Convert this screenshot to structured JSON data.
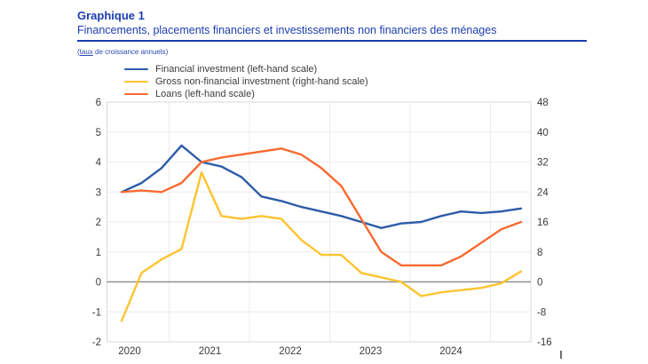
{
  "header": {
    "kicker": "Graphique 1",
    "title": "Financements, placements financiers et investissements non financiers des ménages",
    "note_open": "(",
    "note_link": "taux",
    "note_rest": " de croissance annuels)"
  },
  "colors": {
    "title_blue": "#1b3eae",
    "financial_investment": "#2d5ca8",
    "gross_non_financial_investment": "#fdc42f",
    "loans": "#f86a31",
    "zero_line": "#909090",
    "gridline": "#ececec",
    "axis_text": "#3a3a3a"
  },
  "legend": [
    {
      "label": "Financial investment (left-hand scale)",
      "color": "#2d5ca8"
    },
    {
      "label": "Gross non-financial investment (right-hand scale)",
      "color": "#fdc42f"
    },
    {
      "label": "Loans (left-hand scale)",
      "color": "#f86a31"
    }
  ],
  "chart_data": {
    "type": "line",
    "title": "Financements, placements financiers et investissements non financiers des ménages",
    "subtitle_note": "(taux de croissance annuels)",
    "x": [
      "2019-Q4",
      "2020-Q1",
      "2020-Q2",
      "2020-Q3",
      "2020-Q4",
      "2021-Q1",
      "2021-Q2",
      "2021-Q3",
      "2021-Q4",
      "2022-Q1",
      "2022-Q2",
      "2022-Q3",
      "2022-Q4",
      "2023-Q1",
      "2023-Q2",
      "2023-Q3",
      "2023-Q4",
      "2024-Q1",
      "2024-Q2",
      "2024-Q3",
      "2024-Q4"
    ],
    "x_tick_labels": [
      "2020",
      "2021",
      "2022",
      "2023",
      "2024"
    ],
    "left_axis": {
      "ticks": [
        6,
        5,
        4,
        3,
        2,
        1,
        0,
        -1,
        -2
      ],
      "range": [
        -2,
        6
      ]
    },
    "right_axis": {
      "ticks": [
        48,
        40,
        32,
        24,
        16,
        8,
        0,
        -8,
        -16
      ],
      "range": [
        -16,
        48
      ]
    },
    "grid": true,
    "legend_position": "top-left",
    "series": [
      {
        "name": "Financial investment (left-hand scale)",
        "scale": "left",
        "color": "#2d5ca8",
        "values": [
          3.0,
          3.3,
          3.8,
          4.55,
          4.0,
          3.85,
          3.5,
          2.85,
          2.7,
          2.5,
          2.35,
          2.2,
          2.0,
          1.8,
          1.95,
          2.0,
          2.2,
          2.35,
          2.3,
          2.35,
          2.45
        ]
      },
      {
        "name": "Gross non-financial investment (right-hand scale)",
        "scale": "right",
        "color": "#fdc42f",
        "values": [
          -10.4,
          2.4,
          6.0,
          8.8,
          29.2,
          17.6,
          16.8,
          17.6,
          16.8,
          11.2,
          7.2,
          7.2,
          2.4,
          1.2,
          0.0,
          -3.8,
          -2.8,
          -2.2,
          -1.6,
          -0.4,
          2.8
        ]
      },
      {
        "name": "Loans (left-hand scale)",
        "scale": "left",
        "color": "#f86a31",
        "values": [
          3.0,
          3.05,
          3.0,
          3.3,
          4.0,
          4.15,
          4.25,
          4.35,
          4.45,
          4.25,
          3.8,
          3.2,
          2.1,
          1.0,
          0.55,
          0.55,
          0.55,
          0.85,
          1.3,
          1.75,
          2.0
        ]
      }
    ]
  }
}
